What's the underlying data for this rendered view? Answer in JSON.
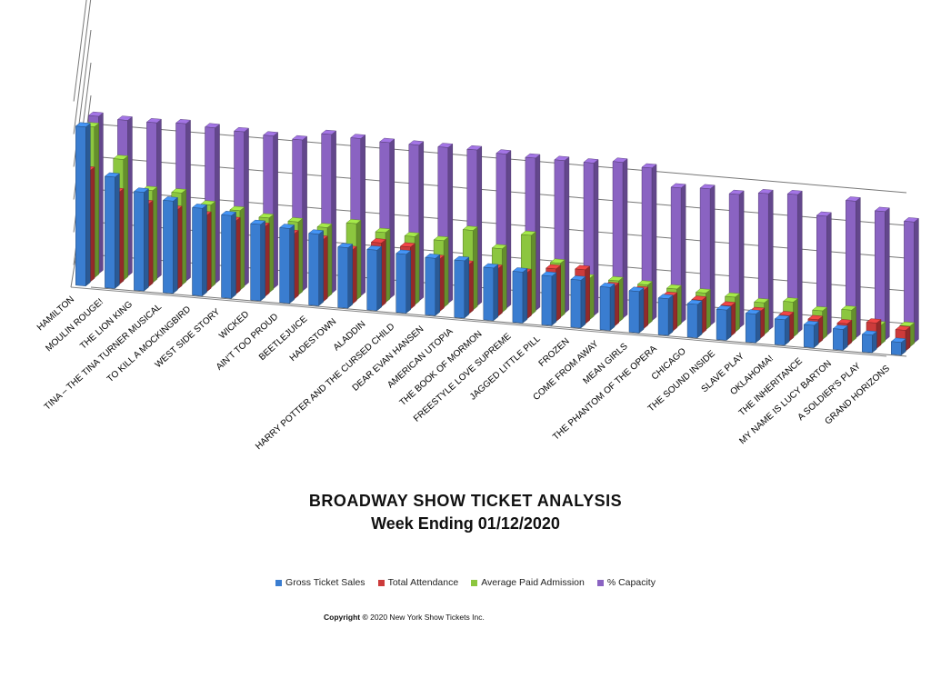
{
  "chart_data": {
    "type": "bar",
    "title": "BROADWAY SHOW TICKET ANALYSIS",
    "subtitle": "Week Ending 01/12/2020",
    "legend_position": "bottom",
    "categories": [
      "HAMILTON",
      "MOULIN ROUGE!",
      "THE LION KING",
      "TINA – THE TINA TURNER MUSICAL",
      "TO KILL A MOCKINGBIRD",
      "WEST SIDE STORY",
      "WICKED",
      "AIN'T TOO PROUD",
      "BEETLEJUICE",
      "HADESTOWN",
      "ALADDIN",
      "HARRY POTTER AND THE CURSED CHILD",
      "DEAR EVAN HANSEN",
      "AMERICAN UTOPIA",
      "THE BOOK OF MORMON",
      "FREESTYLE LOVE SUPREME",
      "JAGGED LITTLE PILL",
      "FROZEN",
      "COME FROM AWAY",
      "MEAN GIRLS",
      "THE PHANTOM OF THE OPERA",
      "CHICAGO",
      "THE SOUND INSIDE",
      "SLAVE PLAY",
      "OKLAHOMA!",
      "THE INHERITANCE",
      "MY NAME IS LUCY BARTON",
      "A SOLDIER'S PLAY",
      "GRAND HORIZONS"
    ],
    "series": [
      {
        "name": "Gross Ticket Sales",
        "color": "#3a7dd0",
        "values": [
          100,
          70,
          62,
          58,
          55,
          52,
          48,
          47,
          45,
          38,
          38,
          37,
          36,
          36,
          33,
          32,
          31,
          30,
          27,
          26,
          23,
          21,
          19,
          18,
          16,
          14,
          13,
          11,
          8
        ]
      },
      {
        "name": "Total Attendance",
        "color": "#cc3b3b",
        "values": [
          70,
          58,
          52,
          50,
          48,
          46,
          44,
          41,
          39,
          34,
          40,
          39,
          33,
          31,
          30,
          29,
          33,
          34,
          25,
          24,
          22,
          21,
          19,
          17,
          16,
          15,
          14,
          16,
          13
        ]
      },
      {
        "name": "Average Paid Admission",
        "color": "#8cc63f",
        "values": [
          95,
          76,
          58,
          58,
          52,
          50,
          47,
          46,
          44,
          48,
          44,
          43,
          42,
          50,
          40,
          50,
          34,
          26,
          26,
          25,
          24,
          23,
          22,
          20,
          22,
          18,
          20,
          12,
          13
        ]
      },
      {
        "name": "% Capacity",
        "color": "#8a63c2",
        "values": [
          99,
          98,
          98,
          99,
          98,
          97,
          96,
          95,
          100,
          99,
          98,
          98,
          98,
          98,
          97,
          96,
          96,
          96,
          98,
          96,
          85,
          86,
          84,
          86,
          87,
          75,
          86,
          81,
          76
        ]
      }
    ],
    "ylabel": "",
    "xlabel": "",
    "grid": true
  },
  "copyright": {
    "prefix": "Copyright",
    "symbol": "©",
    "text": "2020 New York Show Tickets Inc."
  }
}
